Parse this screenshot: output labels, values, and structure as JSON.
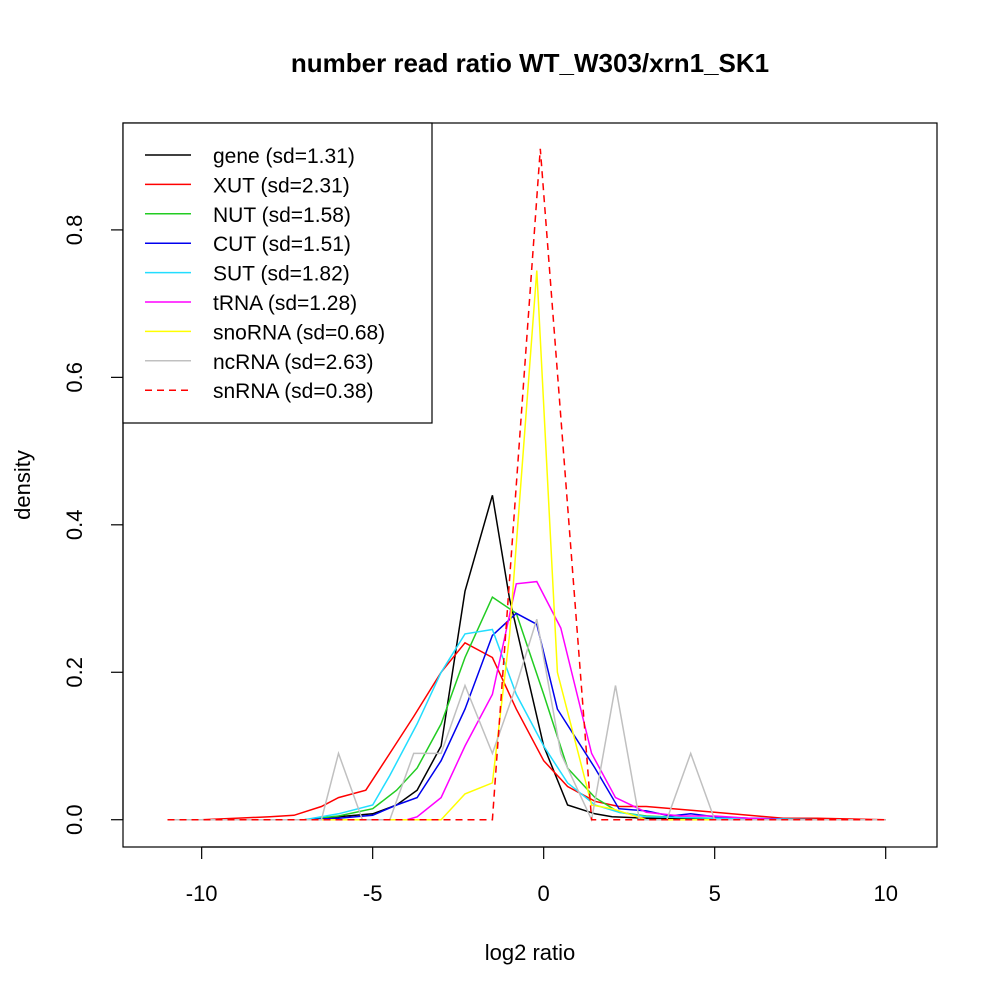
{
  "chart_data": {
    "type": "line",
    "title": "number read ratio WT_W303/xrn1_SK1",
    "xlabel": "log2 ratio",
    "ylabel": "density",
    "xlim": [
      -12.3,
      11.5
    ],
    "ylim": [
      -0.037,
      0.945
    ],
    "xticks": [
      -10,
      -5,
      0,
      5,
      10
    ],
    "yticks": [
      0.0,
      0.2,
      0.4,
      0.6,
      0.8
    ],
    "xtick_labels": [
      "-10",
      "-5",
      "0",
      "5",
      "10"
    ],
    "ytick_labels": [
      "0.0",
      "0.2",
      "0.4",
      "0.6",
      "0.8"
    ],
    "grid": false,
    "legend_position": "top-left",
    "series": [
      {
        "name": "gene (sd=1.31)",
        "color": "#000000",
        "dashed": false,
        "x": [
          -11,
          -10,
          -9,
          -8,
          -7,
          -6,
          -5,
          -4.3,
          -3.7,
          -3,
          -2.3,
          -1.5,
          -1,
          -0.5,
          0,
          0.7,
          1.5,
          2,
          3,
          4,
          5,
          6,
          7,
          8,
          9,
          10
        ],
        "y": [
          0,
          0,
          0,
          0,
          0,
          0.004,
          0.008,
          0.02,
          0.04,
          0.1,
          0.31,
          0.44,
          0.3,
          0.2,
          0.1,
          0.02,
          0.008,
          0.004,
          0.002,
          0.002,
          0.001,
          0.001,
          0.001,
          0.001,
          0,
          0
        ]
      },
      {
        "name": "XUT (sd=2.31)",
        "color": "#ff0000",
        "dashed": false,
        "x": [
          -11,
          -10,
          -9,
          -8,
          -7.3,
          -6.5,
          -6,
          -5.2,
          -4.5,
          -3.8,
          -3,
          -2.3,
          -1.5,
          -0.8,
          0,
          0.7,
          1.5,
          2.2,
          3,
          4,
          5,
          6,
          7,
          8,
          9,
          10
        ],
        "y": [
          0,
          0,
          0.002,
          0.004,
          0.006,
          0.018,
          0.03,
          0.04,
          0.09,
          0.14,
          0.2,
          0.24,
          0.22,
          0.15,
          0.08,
          0.045,
          0.025,
          0.018,
          0.018,
          0.014,
          0.01,
          0.006,
          0.002,
          0.002,
          0.001,
          0
        ]
      },
      {
        "name": "NUT (sd=1.58)",
        "color": "#22cc22",
        "dashed": false,
        "x": [
          -11,
          -10,
          -9,
          -8,
          -7,
          -6,
          -5,
          -4.3,
          -3.7,
          -3,
          -2.3,
          -1.5,
          -0.8,
          0,
          0.7,
          1.5,
          2.2,
          3,
          4,
          5,
          6,
          7,
          8,
          9,
          10
        ],
        "y": [
          0,
          0,
          0,
          0,
          0,
          0.005,
          0.015,
          0.04,
          0.07,
          0.13,
          0.22,
          0.302,
          0.28,
          0.17,
          0.07,
          0.03,
          0.01,
          0.005,
          0.003,
          0.002,
          0.001,
          0.001,
          0,
          0,
          0
        ]
      },
      {
        "name": "CUT (sd=1.51)",
        "color": "#0000ee",
        "dashed": false,
        "x": [
          -11,
          -10,
          -9,
          -8,
          -7,
          -6,
          -5,
          -4.3,
          -3.7,
          -3,
          -2.3,
          -1.5,
          -0.8,
          -0.2,
          0.4,
          1.5,
          2.2,
          3,
          3.7,
          4.3,
          5,
          6,
          7,
          8,
          9,
          10
        ],
        "y": [
          0,
          0,
          0,
          0,
          0,
          0.002,
          0.006,
          0.02,
          0.03,
          0.08,
          0.15,
          0.25,
          0.28,
          0.265,
          0.15,
          0.07,
          0.015,
          0.012,
          0.005,
          0.008,
          0.004,
          0.002,
          0.001,
          0,
          0,
          0
        ]
      },
      {
        "name": "SUT (sd=1.82)",
        "color": "#22ddff",
        "dashed": false,
        "x": [
          -11,
          -10,
          -9,
          -8,
          -7,
          -6,
          -5,
          -4.5,
          -3.7,
          -3,
          -2.3,
          -1.5,
          -0.8,
          0,
          0.7,
          1.5,
          2.2,
          3,
          4,
          5,
          6,
          7,
          8,
          9,
          10
        ],
        "y": [
          0,
          0,
          0,
          0,
          0,
          0.008,
          0.02,
          0.06,
          0.13,
          0.2,
          0.252,
          0.258,
          0.17,
          0.1,
          0.05,
          0.02,
          0.01,
          0.004,
          0.003,
          0.002,
          0.001,
          0.001,
          0,
          0,
          0
        ]
      },
      {
        "name": "tRNA (sd=1.28)",
        "color": "#ff00ff",
        "dashed": false,
        "x": [
          -11,
          -10,
          -9,
          -8,
          -7,
          -6,
          -5,
          -4,
          -3.7,
          -3,
          -2.3,
          -1.5,
          -0.8,
          -0.2,
          0.5,
          1.4,
          2.1,
          3,
          4,
          5,
          6,
          7,
          8,
          9,
          10
        ],
        "y": [
          0,
          0,
          0,
          0,
          0,
          0,
          0,
          0,
          0.004,
          0.03,
          0.1,
          0.17,
          0.32,
          0.323,
          0.26,
          0.09,
          0.03,
          0.01,
          0.005,
          0.005,
          0.002,
          0,
          0,
          0,
          0
        ]
      },
      {
        "name": "snoRNA (sd=0.68)",
        "color": "#ffff00",
        "dashed": false,
        "x": [
          -11,
          -10,
          -9,
          -8,
          -7,
          -6,
          -5,
          -4,
          -3,
          -2.3,
          -1.5,
          -1,
          -0.2,
          0.4,
          1.4,
          2,
          3,
          4,
          5,
          6,
          7,
          8,
          9,
          10
        ],
        "y": [
          0,
          0,
          0,
          0,
          0,
          0,
          0,
          0,
          0,
          0.035,
          0.05,
          0.25,
          0.745,
          0.2,
          0.02,
          0.015,
          0,
          0,
          0,
          0,
          0,
          0,
          0,
          0
        ]
      },
      {
        "name": "ncRNA (sd=2.63)",
        "color": "#c0c0c0",
        "dashed": false,
        "x": [
          -11,
          -10,
          -9,
          -8,
          -7,
          -6.5,
          -6,
          -5.3,
          -4.5,
          -3.8,
          -3,
          -2.3,
          -1.5,
          -0.8,
          -0.2,
          0.5,
          1.4,
          2.1,
          2.8,
          3.6,
          4.3,
          5,
          6,
          7,
          8,
          9,
          10
        ],
        "y": [
          0,
          0,
          0,
          0,
          0,
          0,
          0.09,
          0,
          0,
          0.09,
          0.09,
          0.182,
          0.09,
          0.182,
          0.272,
          0.09,
          0,
          0.182,
          0,
          0,
          0.09,
          0,
          0,
          0,
          0,
          0,
          0
        ]
      },
      {
        "name": "snRNA (sd=0.38)",
        "color": "#ff0000",
        "dashed": true,
        "x": [
          -11,
          -10,
          -9,
          -8,
          -7,
          -6,
          -5,
          -4,
          -3,
          -2.3,
          -1.5,
          -0.1,
          1.4,
          2,
          3,
          4,
          5,
          6,
          7,
          8,
          9,
          10
        ],
        "y": [
          0,
          0,
          0,
          0,
          0,
          0,
          0,
          0,
          0,
          0,
          0,
          0.91,
          0,
          0,
          0,
          0,
          0,
          0,
          0,
          0,
          0,
          0
        ]
      }
    ]
  }
}
